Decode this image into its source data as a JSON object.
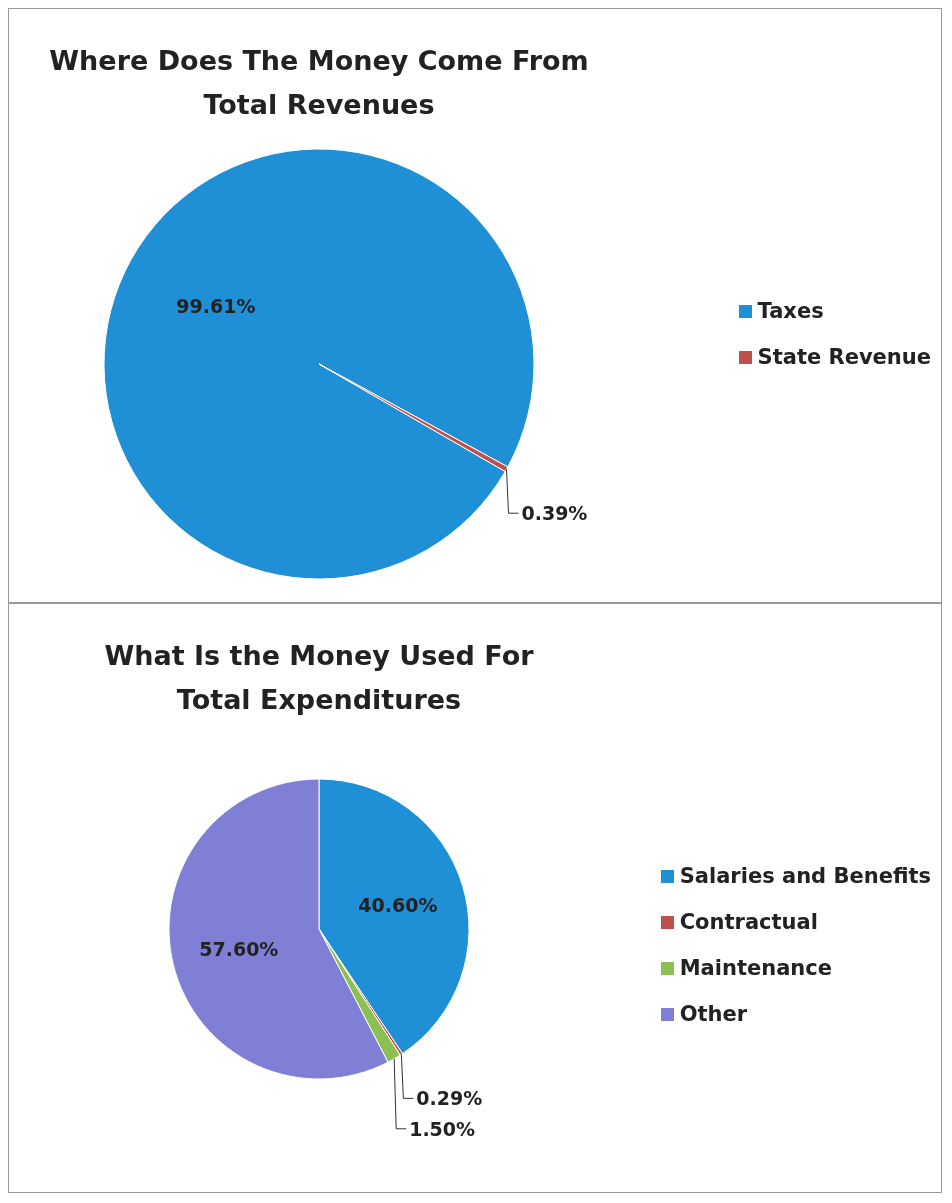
{
  "chart_data": [
    {
      "type": "pie",
      "title": "Where Does The Money Come From",
      "subtitle": "Total Revenues",
      "categories": [
        "Taxes",
        "State Revenue"
      ],
      "values": [
        99.61,
        0.39
      ],
      "colors": [
        "#1f8fd6",
        "#c0504d"
      ],
      "value_labels": [
        "99.61%",
        "0.39%"
      ],
      "legend": "right"
    },
    {
      "type": "pie",
      "title": "What Is the Money Used For",
      "subtitle": "Total Expenditures",
      "categories": [
        "Salaries and Benefits",
        "Contractual",
        "Maintenance",
        "Other"
      ],
      "values": [
        40.6,
        0.29,
        1.5,
        57.6
      ],
      "colors": [
        "#1f8fd6",
        "#c0504d",
        "#8cc152",
        "#7f7fd6"
      ],
      "value_labels": [
        "40.60%",
        "0.29%",
        "1.50%",
        "57.60%"
      ],
      "legend": "right"
    }
  ]
}
